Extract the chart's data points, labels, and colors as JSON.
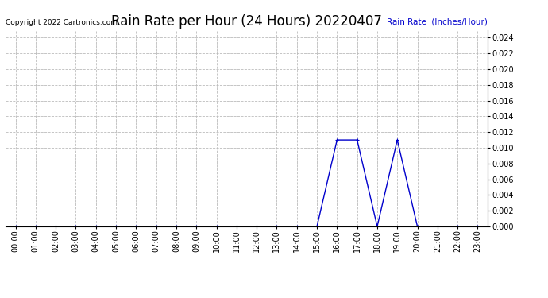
{
  "title": "Rain Rate per Hour (24 Hours) 20220407",
  "ylabel": "Rain Rate  (Inches/Hour)",
  "copyright_text": "Copyright 2022 Cartronics.com",
  "background_color": "#ffffff",
  "plot_bg_color": "#ffffff",
  "line_color": "#0000cc",
  "grid_color": "#bbbbbb",
  "title_color": "#000000",
  "ylabel_color": "#0000cc",
  "copyright_color": "#000000",
  "hours": [
    0,
    1,
    2,
    3,
    4,
    5,
    6,
    7,
    8,
    9,
    10,
    11,
    12,
    13,
    14,
    15,
    16,
    17,
    18,
    19,
    20,
    21,
    22,
    23
  ],
  "values": [
    0.0,
    0.0,
    0.0,
    0.0,
    0.0,
    0.0,
    0.0,
    0.0,
    0.0,
    0.0,
    0.0,
    0.0,
    0.0,
    0.0,
    0.0,
    0.0,
    0.011,
    0.011,
    0.0,
    0.011,
    0.0,
    0.0,
    0.0,
    0.0
  ],
  "ylim": [
    0.0,
    0.025
  ],
  "yticks": [
    0.0,
    0.002,
    0.004,
    0.006,
    0.008,
    0.01,
    0.012,
    0.014,
    0.016,
    0.018,
    0.02,
    0.022,
    0.024
  ],
  "marker_size": 2.5,
  "line_width": 1.0,
  "title_fontsize": 12,
  "tick_fontsize": 7,
  "ylabel_fontsize": 7.5,
  "copyright_fontsize": 6.5
}
